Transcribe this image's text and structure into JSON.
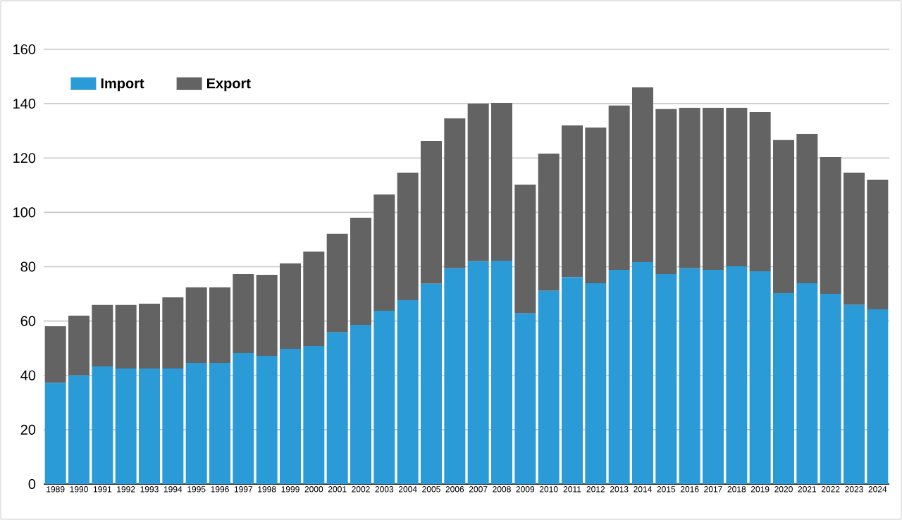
{
  "chart_data": {
    "type": "bar",
    "stacked": true,
    "categories": [
      "1989",
      "1990",
      "1991",
      "1992",
      "1993",
      "1994",
      "1995",
      "1996",
      "1997",
      "1998",
      "1999",
      "2000",
      "2001",
      "2002",
      "2003",
      "2004",
      "2005",
      "2006",
      "2007",
      "2008",
      "2009",
      "2010",
      "2011",
      "2012",
      "2013",
      "2014",
      "2015",
      "2016",
      "2017",
      "2018",
      "2019",
      "2020",
      "2021",
      "2022",
      "2023",
      "2024"
    ],
    "series": [
      {
        "name": "Import",
        "color": "#2b9bd8",
        "values": [
          37.3,
          40,
          43.3,
          42.5,
          42.5,
          42.5,
          44.6,
          44.6,
          48.2,
          47.2,
          49.8,
          50.8,
          55.8,
          58.6,
          63.8,
          67.7,
          73.7,
          79.4,
          82,
          82.2,
          62.8,
          71.1,
          76.2,
          73.9,
          78.8,
          81.7,
          77.3,
          79.4,
          78.8,
          80.1,
          78.3,
          70.3,
          73.9,
          70,
          65.9,
          64.3
        ]
      },
      {
        "name": "Export",
        "color": "#636363",
        "values": [
          20.8,
          22,
          22.6,
          23.4,
          23.9,
          26.2,
          27.8,
          27.8,
          29.1,
          29.8,
          31.4,
          34.8,
          36.3,
          39.4,
          42.8,
          46.9,
          52.6,
          55.2,
          58,
          58.1,
          47.4,
          50.5,
          55.8,
          57.3,
          60.5,
          64.3,
          60.7,
          59.1,
          59.7,
          58.4,
          58.6,
          56.3,
          55,
          50.3,
          48.7,
          47.7
        ]
      }
    ],
    "ylim": [
      0,
      160
    ],
    "yticks": [
      0,
      20,
      40,
      60,
      80,
      100,
      120,
      140,
      160
    ],
    "grid": "y",
    "legend": "top left"
  }
}
